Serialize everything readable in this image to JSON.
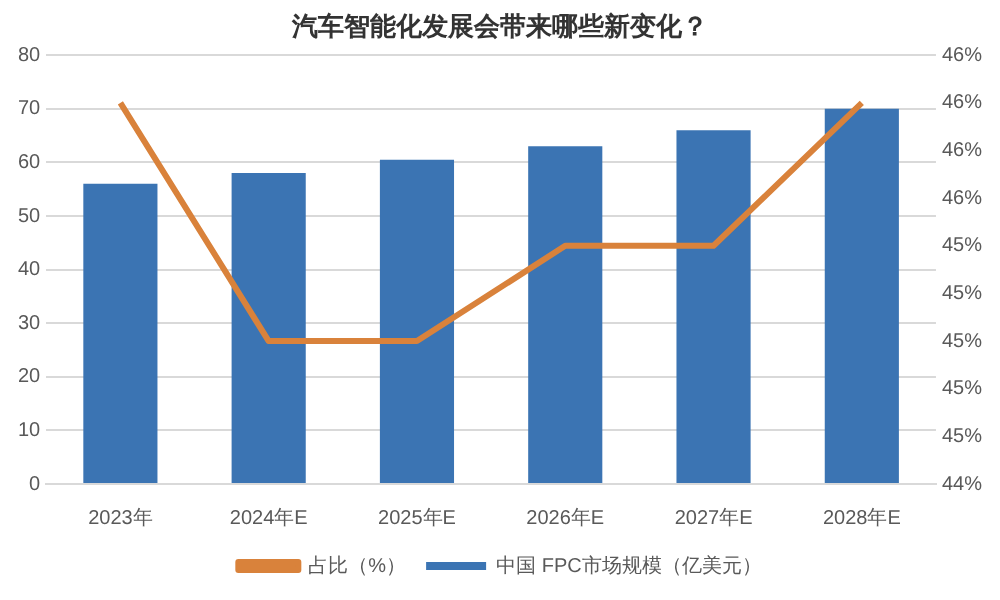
{
  "chart_data": {
    "type": "bar",
    "title": "汽车智能化发展会带来哪些新变化？",
    "categories": [
      "2023年",
      "2024年E",
      "2025年E",
      "2026年E",
      "2027年E",
      "2028年E"
    ],
    "series": [
      {
        "name": "中国 FPC市场规模（亿美元）",
        "color": "#3b74b3",
        "values": [
          56,
          58,
          60.5,
          63,
          66,
          70
        ]
      },
      {
        "name": "占比（%）",
        "type": "line",
        "axis": "y2",
        "color": "#d9823b",
        "values": [
          46.0,
          45.0,
          45.0,
          45.4,
          45.4,
          46.0
        ]
      }
    ],
    "ylim": [
      0,
      80
    ],
    "yticks": [
      0,
      10,
      20,
      30,
      40,
      50,
      60,
      70,
      80
    ],
    "y2lim": [
      44.4,
      46.2
    ],
    "y2ticks": [
      {
        "value": 44.4,
        "label": "44%"
      },
      {
        "value": 44.6,
        "label": "45%"
      },
      {
        "value": 44.8,
        "label": "45%"
      },
      {
        "value": 45.0,
        "label": "45%"
      },
      {
        "value": 45.2,
        "label": "45%"
      },
      {
        "value": 45.4,
        "label": "45%"
      },
      {
        "value": 45.6,
        "label": "46%"
      },
      {
        "value": 45.8,
        "label": "46%"
      },
      {
        "value": 46.0,
        "label": "46%"
      },
      {
        "value": 46.2,
        "label": "46%"
      }
    ],
    "grid": "y",
    "legend": "bottom",
    "marker": "none"
  }
}
